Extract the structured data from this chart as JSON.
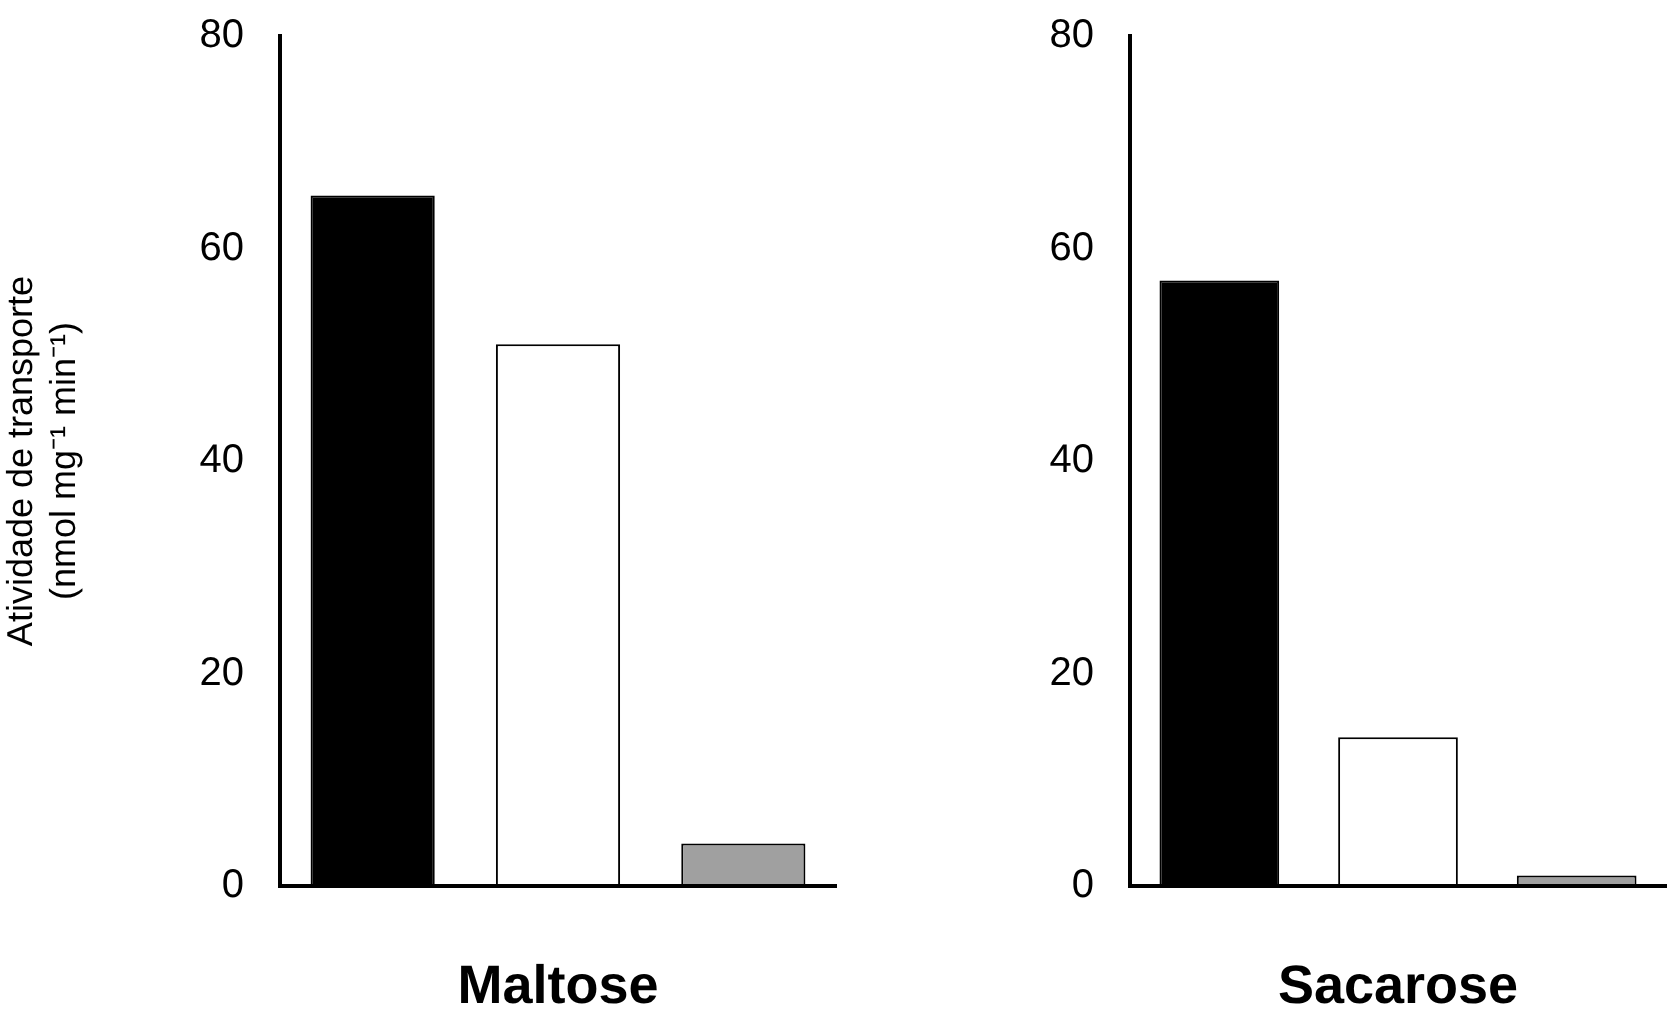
{
  "chart_data": [
    {
      "type": "bar",
      "xlabel": "Maltose",
      "ylabel": "Atividade de transporte (nmol mg⁻¹ min⁻¹)",
      "categories": [
        null,
        null,
        null
      ],
      "values": [
        65,
        51,
        4
      ],
      "colors": [
        "#000000",
        "#ffffff",
        "#a0a0a0"
      ],
      "ylim": [
        0,
        80
      ],
      "yticks": [
        0,
        20,
        40,
        60,
        80
      ],
      "tick_labels": "y"
    },
    {
      "type": "bar",
      "xlabel": "Sacarose",
      "categories": [
        null,
        null,
        null
      ],
      "values": [
        57,
        14,
        1
      ],
      "colors": [
        "#000000",
        "#ffffff",
        "#a0a0a0"
      ],
      "ylim": [
        0,
        80
      ],
      "yticks": [
        0,
        20,
        40,
        60,
        80
      ],
      "tick_labels": "y"
    }
  ]
}
